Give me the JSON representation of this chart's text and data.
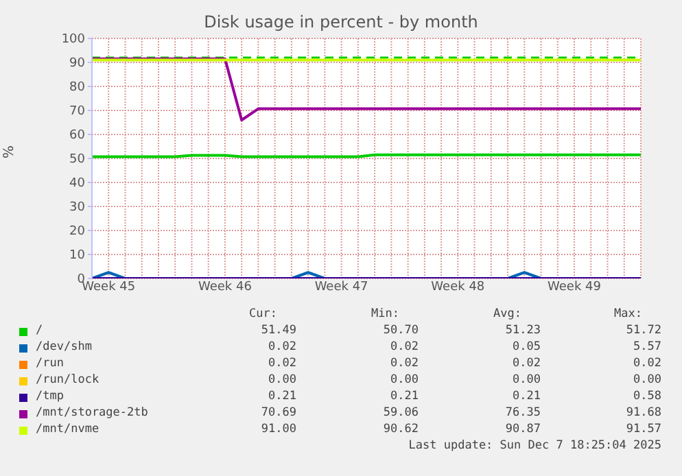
{
  "chart_data": {
    "type": "line",
    "title": "Disk usage in percent - by month",
    "ylabel": "%",
    "categories": [
      null,
      "Week 45",
      null,
      null,
      null,
      null,
      null,
      null,
      "Week 46",
      null,
      null,
      null,
      null,
      null,
      null,
      "Week 47",
      null,
      null,
      null,
      null,
      null,
      null,
      "Week 48",
      null,
      null,
      null,
      null,
      null,
      null,
      "Week 49",
      null,
      null,
      null,
      null
    ],
    "ylim": [
      0,
      100
    ],
    "yticks": [
      0,
      10,
      20,
      30,
      40,
      50,
      60,
      70,
      80,
      90,
      100
    ],
    "grid": true,
    "legend": "bottom",
    "marker": "none",
    "line_style": "solid",
    "series": [
      {
        "name": "/",
        "color": "#00cc00",
        "values": [
          50.7,
          50.7,
          50.7,
          50.7,
          50.7,
          50.7,
          51.3,
          51.3,
          51.3,
          50.7,
          50.7,
          50.7,
          50.7,
          50.7,
          50.7,
          50.7,
          50.7,
          51.5,
          51.5,
          51.5,
          51.5,
          51.5,
          51.5,
          51.5,
          51.5,
          51.5,
          51.5,
          51.5,
          51.5,
          51.5,
          51.5,
          51.5,
          51.5,
          51.5
        ]
      },
      {
        "name": "/dev/shm",
        "color": "#0066b3",
        "values": [
          0,
          2.5,
          0,
          null,
          null,
          null,
          null,
          null,
          null,
          null,
          null,
          null,
          0,
          2.5,
          0,
          null,
          null,
          null,
          null,
          null,
          null,
          null,
          null,
          null,
          null,
          0,
          2.5,
          0,
          null,
          null,
          null,
          null,
          null,
          null
        ]
      },
      {
        "name": "/run",
        "color": "#ff8000",
        "values": [
          null,
          null,
          null,
          null,
          null,
          null,
          null,
          null,
          null,
          null,
          null,
          null,
          null,
          null,
          null,
          null,
          null,
          null,
          null,
          null,
          null,
          null,
          null,
          null,
          null,
          null,
          null,
          null,
          null,
          null,
          null,
          null,
          null,
          null
        ]
      },
      {
        "name": "/run/lock",
        "color": "#ffcc00",
        "values": [
          null,
          null,
          null,
          null,
          null,
          null,
          null,
          null,
          null,
          null,
          null,
          null,
          null,
          null,
          null,
          null,
          null,
          null,
          null,
          null,
          null,
          null,
          null,
          null,
          null,
          null,
          null,
          null,
          null,
          null,
          null,
          null,
          null,
          null
        ]
      },
      {
        "name": "/tmp",
        "color": "#330099",
        "values": [
          0,
          0,
          0,
          0,
          0,
          0,
          0,
          0,
          0,
          0,
          0,
          0,
          0,
          0,
          0,
          0,
          0,
          0,
          0,
          0,
          0,
          0,
          0,
          0,
          0,
          0,
          0,
          0,
          0,
          0,
          0,
          0,
          0,
          0
        ]
      },
      {
        "name": "/mnt/storage-2tb",
        "color": "#990099",
        "values": [
          91.5,
          91.5,
          91.5,
          91.5,
          91.5,
          91.5,
          91.5,
          91.5,
          91.5,
          66,
          70.7,
          70.7,
          70.7,
          70.7,
          70.7,
          70.7,
          70.7,
          70.7,
          70.7,
          70.7,
          70.7,
          70.7,
          70.7,
          70.7,
          70.7,
          70.7,
          70.7,
          70.7,
          70.7,
          70.7,
          70.7,
          70.7,
          70.7,
          70.7
        ]
      },
      {
        "name": "/mnt/nvme",
        "color": "#ccff00",
        "values": [
          91,
          91,
          91,
          91,
          91,
          91,
          91,
          91,
          91,
          91,
          91,
          91,
          91,
          91,
          91,
          91,
          91,
          91,
          91,
          91,
          91,
          91,
          91,
          91,
          91,
          91,
          91,
          91,
          91,
          91,
          91,
          91,
          91,
          91
        ]
      }
    ],
    "ref_lines": [
      {
        "axis": "y",
        "value": 92,
        "color": "#00cc00",
        "line_style": "dashed"
      }
    ],
    "annotations": [
      "Cur:",
      "Min:",
      "Avg:",
      "Max:",
      "51.49",
      "50.70",
      "51.23",
      "51.72",
      "0.02",
      "0.02",
      "0.05",
      "5.57",
      "0.02",
      "0.02",
      "0.02",
      "0.02",
      "0.00",
      "0.00",
      "0.00",
      "0.00",
      "0.21",
      "0.21",
      "0.21",
      "0.58",
      "70.69",
      "59.06",
      "76.35",
      "91.68",
      "91.00",
      "90.62",
      "90.87",
      "91.57",
      "Last update: Sun Dec  7 18:25:04 2025"
    ]
  }
}
